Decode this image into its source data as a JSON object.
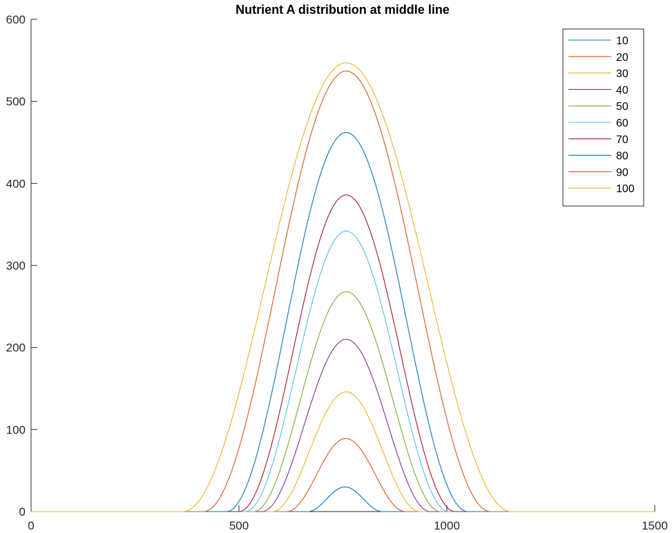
{
  "chart_data": {
    "type": "line",
    "title": "Nutrient A distribution at middle line",
    "xlabel": "",
    "ylabel": "",
    "xlim": [
      0,
      1500
    ],
    "ylim": [
      0,
      600
    ],
    "xticks": [
      0,
      500,
      1000,
      1500
    ],
    "yticks": [
      0,
      100,
      200,
      300,
      400,
      500,
      600
    ],
    "grid": false,
    "legend_position": "top-right",
    "series": [
      {
        "name": "10",
        "color": "#0072BD",
        "peak_x": 755,
        "peak_y": 30,
        "support": [
          665,
          845
        ]
      },
      {
        "name": "20",
        "color": "#D95319",
        "peak_x": 757,
        "peak_y": 89,
        "support": [
          615,
          900
        ]
      },
      {
        "name": "30",
        "color": "#EDB120",
        "peak_x": 758,
        "peak_y": 146,
        "support": [
          580,
          935
        ]
      },
      {
        "name": "40",
        "color": "#7E2F8E",
        "peak_x": 758,
        "peak_y": 210,
        "support": [
          555,
          960
        ]
      },
      {
        "name": "50",
        "color": "#77AC30",
        "peak_x": 758,
        "peak_y": 268,
        "support": [
          535,
          985
        ]
      },
      {
        "name": "60",
        "color": "#4DBEEE",
        "peak_x": 758,
        "peak_y": 342,
        "support": [
          515,
          1005
        ]
      },
      {
        "name": "70",
        "color": "#A2142F",
        "peak_x": 758,
        "peak_y": 386,
        "support": [
          500,
          1020
        ]
      },
      {
        "name": "80",
        "color": "#0072BD",
        "peak_x": 758,
        "peak_y": 462,
        "support": [
          470,
          1050
        ]
      },
      {
        "name": "90",
        "color": "#D95319",
        "peak_x": 758,
        "peak_y": 537,
        "support": [
          415,
          1105
        ]
      },
      {
        "name": "100",
        "color": "#EDB120",
        "peak_x": 758,
        "peak_y": 547,
        "support": [
          365,
          1155
        ]
      }
    ]
  }
}
